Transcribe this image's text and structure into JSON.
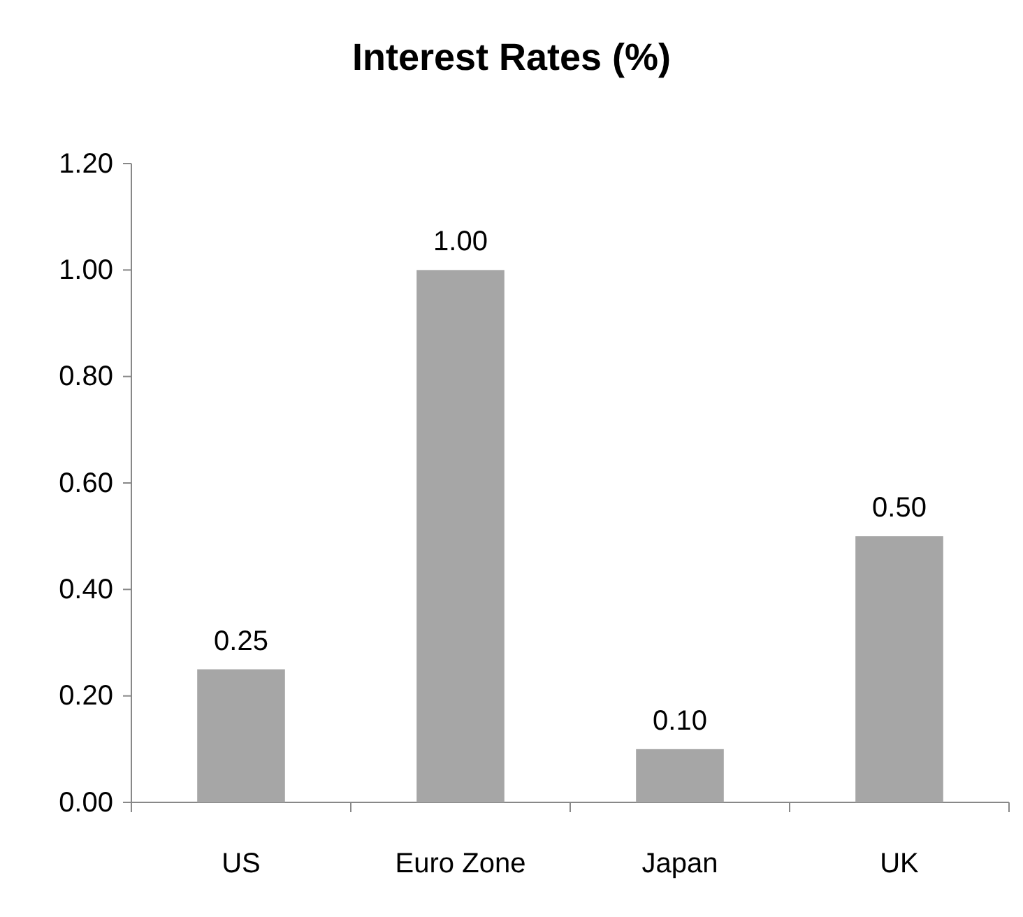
{
  "chart_data": {
    "type": "bar",
    "title": "Interest Rates (%)",
    "categories": [
      "US",
      "Euro Zone",
      "Japan",
      "UK"
    ],
    "values": [
      0.25,
      1.0,
      0.1,
      0.5
    ],
    "value_labels": [
      "0.25",
      "1.00",
      "0.10",
      "0.50"
    ],
    "color": "#a6a6a6",
    "ylim": [
      0,
      1.2
    ],
    "yticks": [
      {
        "value": 0,
        "label": "0.00"
      },
      {
        "value": 0.2,
        "label": "0.20"
      },
      {
        "value": 0.4,
        "label": "0.40"
      },
      {
        "value": 0.6,
        "label": "0.60"
      },
      {
        "value": 0.8,
        "label": "0.80"
      },
      {
        "value": 1.0,
        "label": "1.00"
      },
      {
        "value": 1.2,
        "label": "1.20"
      }
    ],
    "grid": false
  }
}
